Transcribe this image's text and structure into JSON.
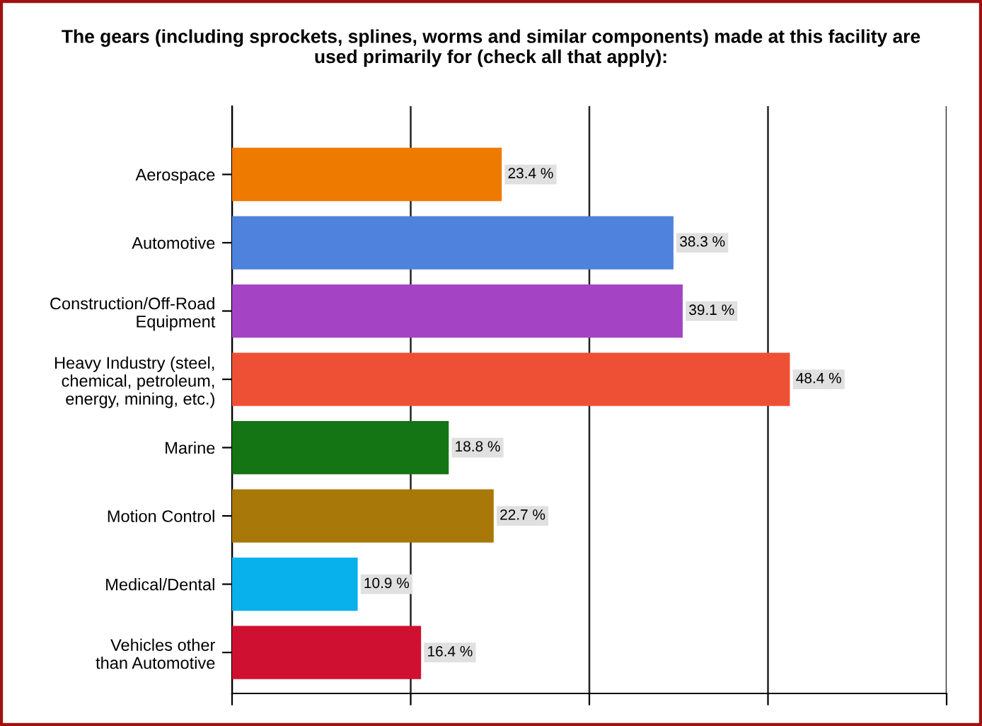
{
  "chart_data": {
    "type": "bar",
    "orientation": "horizontal",
    "title": "The gears (including sprockets, splines, worms and similar components) made at this facility are\nused primarily for (check all that apply):",
    "categories": [
      "Aerospace",
      "Automotive",
      "Construction/Off-Road\nEquipment",
      "Heavy Industry (steel,\nchemical, petroleum,\nenergy, mining, etc.)",
      "Marine",
      "Motion Control",
      "Medical/Dental",
      "Vehicles other\nthan Automotive"
    ],
    "values": [
      23.4,
      38.3,
      39.1,
      48.4,
      18.8,
      22.7,
      10.9,
      16.4
    ],
    "colors": [
      "#ee7a00",
      "#4f82dc",
      "#a444c4",
      "#ee5035",
      "#137513",
      "#a87808",
      "#08b0ec",
      "#d01030"
    ],
    "value_labels": [
      "23.4 %",
      "38.3 %",
      "39.1 %",
      "48.4 %",
      "18.8 %",
      "22.7 %",
      "10.9 %",
      "16.4 %"
    ],
    "xlim": [
      0,
      62
    ],
    "xticks": [
      {
        "value": 0,
        "label": null
      },
      {
        "value": 15.5,
        "label": null
      },
      {
        "value": 31,
        "label": null
      },
      {
        "value": 46.5,
        "label": null
      },
      {
        "value": 62,
        "label": null
      }
    ],
    "grid": "x",
    "legend": false
  }
}
